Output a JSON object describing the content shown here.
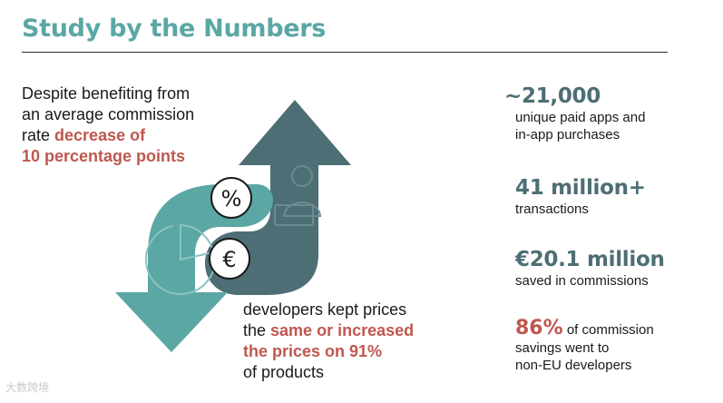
{
  "header": {
    "title": "Study by the Numbers"
  },
  "left_callout": {
    "line_plain_1": "Despite benefiting from",
    "line_plain_2": "an average commission",
    "line_plain_3": "rate ",
    "highlight_1": "decrease of",
    "highlight_2": "10 percentage points"
  },
  "bottom_callout": {
    "line_plain_1": "developers kept prices",
    "line_plain_2": "the ",
    "highlight_1": "same or increased",
    "highlight_2": "the prices on 91%",
    "line_plain_3": "of products"
  },
  "stats": [
    {
      "value": "~21,000",
      "desc_1": "unique paid apps and",
      "desc_2": "in-app purchases"
    },
    {
      "value": "41 million+",
      "desc_1": "transactions"
    },
    {
      "value": "€20.1 million",
      "desc_1": "saved in commissions"
    },
    {
      "value": "86%",
      "desc_inline": " of commission",
      "desc_2": "savings went to",
      "desc_3": "non-EU developers"
    }
  ],
  "icons": {
    "percent": "%",
    "euro": "€"
  },
  "colors": {
    "teal": "#5aa7a4",
    "slate": "#4d6e74",
    "accent": "#c0574e"
  },
  "watermark": "大数跨境"
}
